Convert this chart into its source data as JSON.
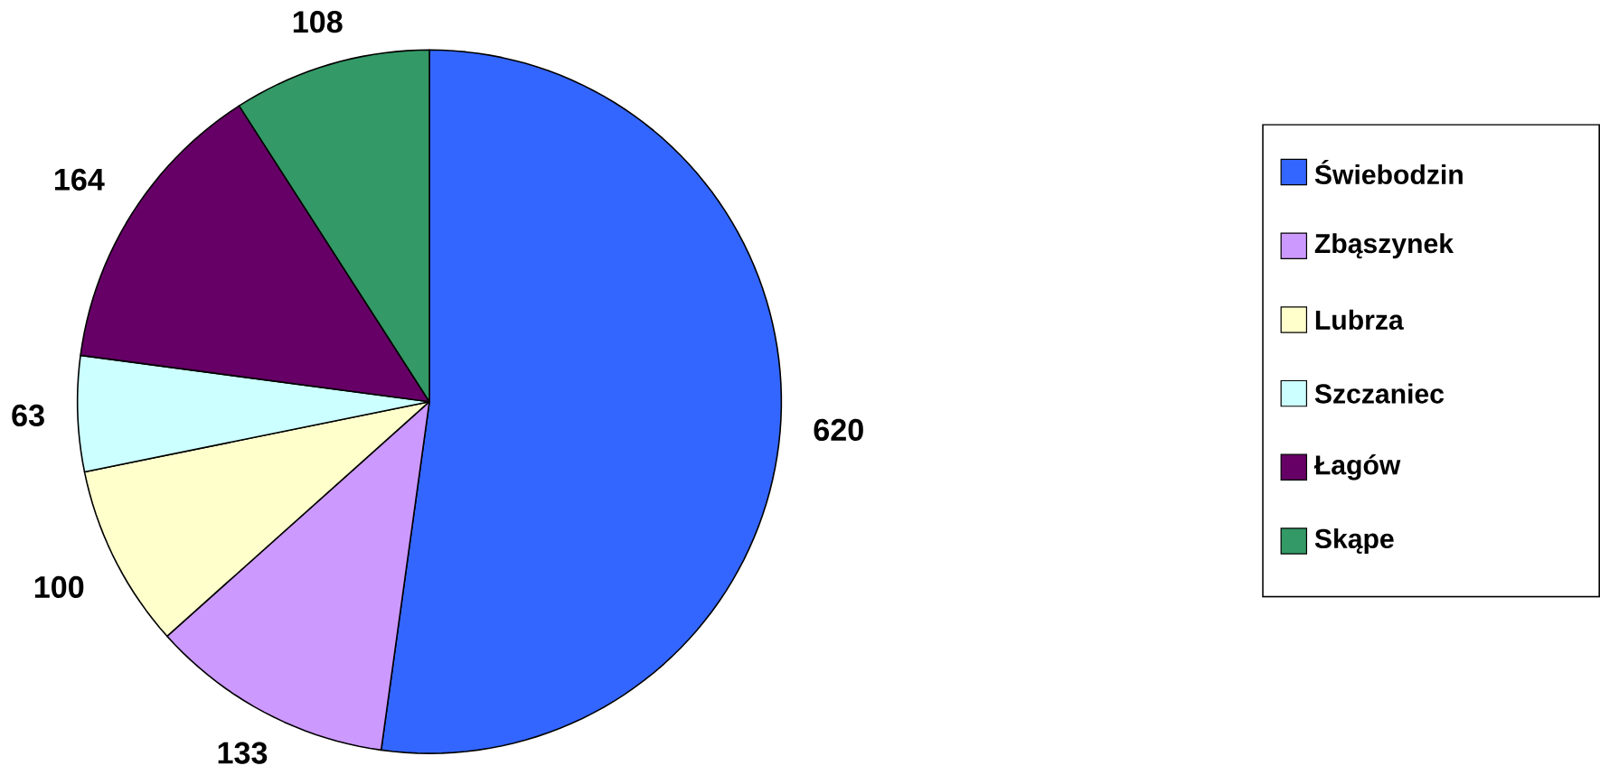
{
  "chart_data": {
    "type": "pie",
    "categories": [
      "Świebodzin",
      "Zbąszynek",
      "Lubrza",
      "Szczaniec",
      "Łagów",
      "Skąpe"
    ],
    "values": [
      620,
      133,
      100,
      63,
      164,
      108
    ],
    "colors": [
      "#3366ff",
      "#cc99ff",
      "#ffffcc",
      "#ccffff",
      "#660066",
      "#339966"
    ],
    "data_labels": true,
    "legend": "right"
  }
}
